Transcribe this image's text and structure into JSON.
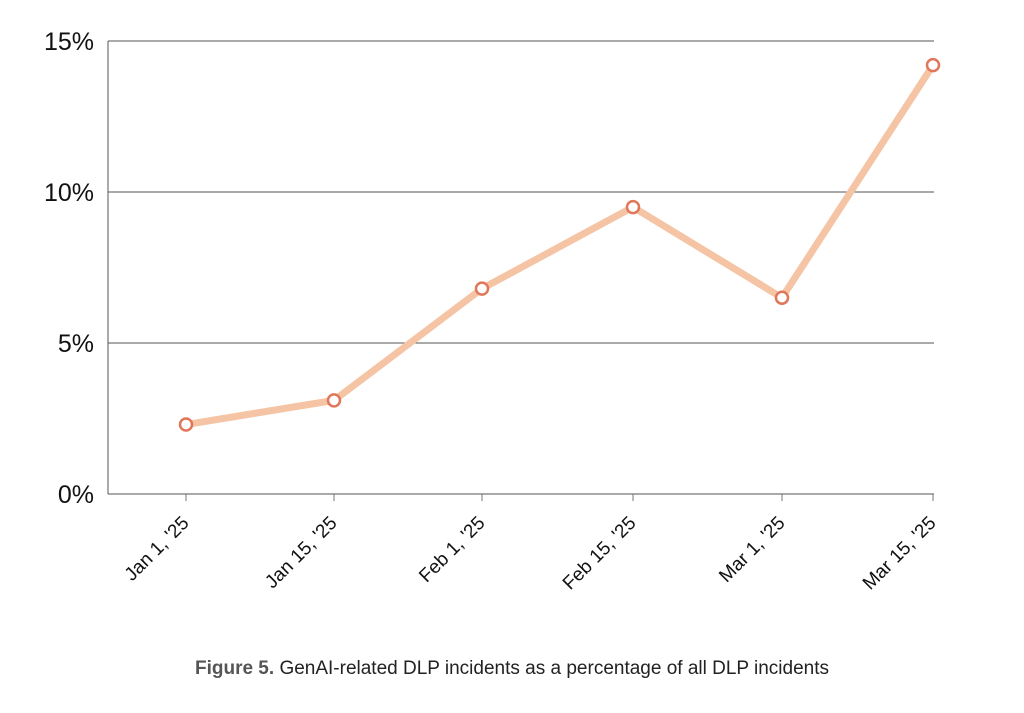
{
  "caption": {
    "label": "Figure 5.",
    "text": "GenAI-related DLP incidents as a percentage of all DLP incidents"
  },
  "colors": {
    "line": "#f5c4a4",
    "marker": "#e0775a",
    "grid": "#555555"
  },
  "chart_data": {
    "type": "line",
    "title": "",
    "xlabel": "",
    "ylabel": "",
    "categories": [
      "Jan 1, '25",
      "Jan 15, '25",
      "Feb 1, '25",
      "Feb 15, '25",
      "Mar 1, '25",
      "Mar 15, '25"
    ],
    "series": [
      {
        "values": [
          2.3,
          3.1,
          6.8,
          9.5,
          6.5,
          14.2
        ]
      }
    ],
    "y_ticks": [
      "0%",
      "5%",
      "10%",
      "15%"
    ],
    "y_tick_values": [
      0,
      5,
      10,
      15
    ],
    "ylim": [
      0,
      15
    ],
    "grid": true,
    "legend": "none"
  }
}
